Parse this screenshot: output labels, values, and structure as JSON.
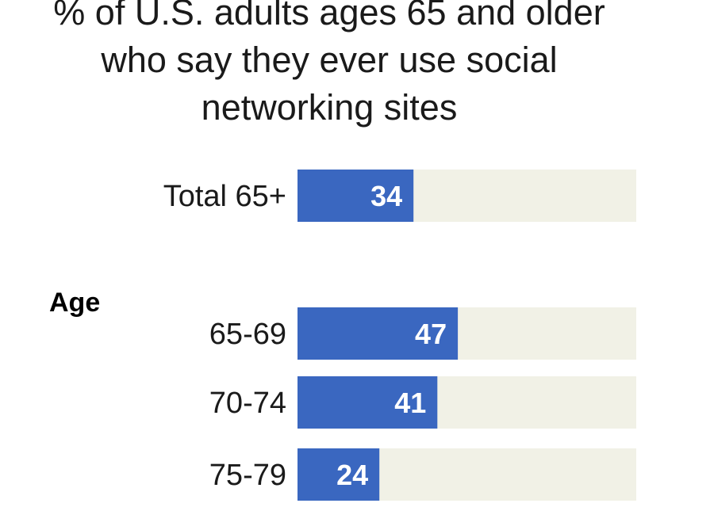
{
  "title_lines": [
    "% of U.S. adults ages 65 and older",
    "who say they ever use social",
    "networking sites"
  ],
  "section_label": "Age",
  "colors": {
    "bar": "#3a67c0",
    "track": "#f1f1e6",
    "text": "#1a1a1a"
  },
  "chart_data": {
    "type": "bar",
    "orientation": "horizontal",
    "title": "% of U.S. adults ages 65 and older who say they ever use social networking sites",
    "categories": [
      "Total 65+",
      "65-69",
      "70-74",
      "75-79"
    ],
    "values": [
      34,
      47,
      41,
      24
    ],
    "groups": [
      {
        "name": "",
        "categories": [
          "Total 65+"
        ]
      },
      {
        "name": "Age",
        "categories": [
          "65-69",
          "70-74",
          "75-79"
        ]
      }
    ],
    "xlim": [
      0,
      100
    ],
    "data_labels": true,
    "grid": false,
    "xlabel": "",
    "ylabel": ""
  }
}
